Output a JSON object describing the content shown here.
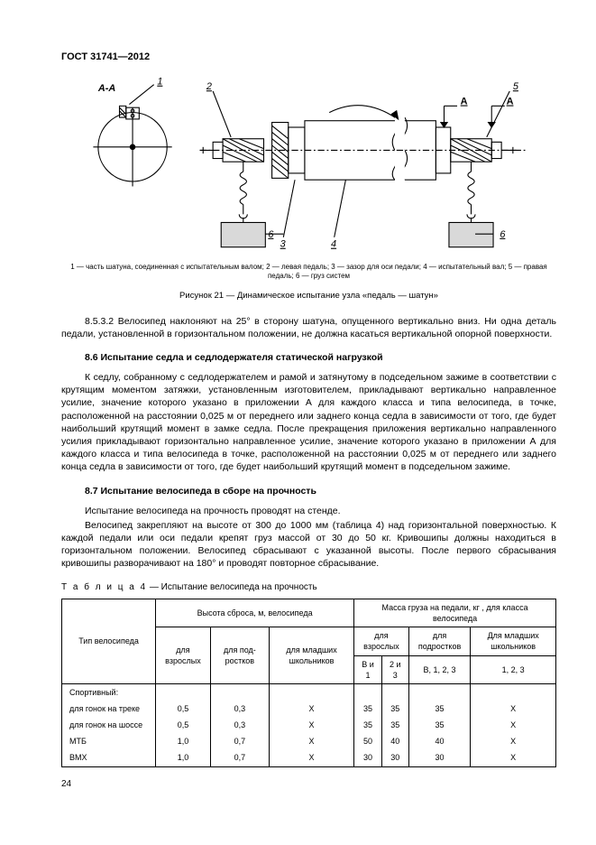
{
  "doc_id": "ГОСТ 31741—2012",
  "figure": {
    "labels": {
      "aa": "А-А",
      "n1": "1",
      "n2": "2",
      "n3": "3",
      "n4": "4",
      "n5": "5",
      "n6": "6",
      "a_left": "А",
      "a_right": "А"
    },
    "legend": "1 — часть шатуна, соединенная с испытательным валом; 2 — левая педаль; 3 — зазор для оси педали; 4 — испытательный вал; 5 — правая педаль; 6 — груз систем",
    "caption": "Рисунок 21 — Динамическое испытание узла «педаль — шатун»"
  },
  "para_8_5_3_2": "8.5.3.2 Велосипед наклоняют на 25° в сторону шатуна, опущенного вертикально вниз. Ни одна деталь педали, установленной в горизонтальном положении, не должна касаться вертикальной опорной поверхности.",
  "sec_8_6": {
    "head": "8.6  Испытание седла и седлодержателя статической нагрузкой",
    "body": "К седлу, собранному с седлодержателем и рамой и затянутому в подседельном зажиме в соответствии с крутящим моментом затяжки, установленным изготовителем, прикладывают вертикально направленное усилие, значение которого указано в приложении А для каждого класса и типа велосипеда, в точке, расположенной на расстоянии 0,025 м от переднего или заднего конца седла в зависимости от того, где будет наибольший крутящий момент в замке седла. После прекращения приложения вертикально направленного усилия прикладывают горизонтально направленное усилие, значение которого указано в приложении А для каждого класса и типа велосипеда в точке, расположенной на расстоянии 0,025 м от переднего или заднего конца седла в зависимости от того, где будет наибольший крутящий момент в подседельном зажиме."
  },
  "sec_8_7": {
    "head": "8.7  Испытание велосипеда в сборе на прочность",
    "p1": "Испытание велосипеда на прочность проводят на стенде.",
    "p2": "Велосипед закрепляют на высоте от 300 до 1000 мм (таблица 4) над горизонтальной поверхностью. К каждой педали или оси педали крепят груз массой от 30 до 50 кг. Кривошипы должны находиться в горизонтальном положении. Велосипед сбрасывают с указанной высоты. После первого сбрасывания кривошипы разворачивают на 180° и проводят повторное сбрасывание."
  },
  "table4": {
    "caption_word": "Т а б л и ц а  4",
    "caption_rest": " — Испытание велосипеда на прочность",
    "head": {
      "col_type": "Тип велосипеда",
      "drop_group": "Высота сброса, м, велосипеда",
      "mass_group": "Масса груза на педали, кг , для класса велосипеда",
      "adult": "для\nвзрослых",
      "teen": "для под-\nростков",
      "junior": "для младших\nшкольников",
      "mass_adult": "для\nвзрослых",
      "mass_teen": "для\nподростков",
      "mass_junior": "Для младших\nшкольников",
      "sub_a": "В и 1",
      "sub_b": "2 и 3",
      "sub_c": "В, 1, 2, 3",
      "sub_d": "1, 2, 3"
    },
    "rows": [
      {
        "label": "Спортивный:",
        "c": [
          "",
          "",
          "",
          "",
          "",
          "",
          ""
        ]
      },
      {
        "label": "для гонок на треке",
        "c": [
          "0,5",
          "0,3",
          "Х",
          "35",
          "35",
          "35",
          "Х"
        ]
      },
      {
        "label": "для гонок на шоссе",
        "c": [
          "0,5",
          "0,3",
          "Х",
          "35",
          "35",
          "35",
          "Х"
        ]
      },
      {
        "label": "МТБ",
        "c": [
          "1,0",
          "0,7",
          "Х",
          "50",
          "40",
          "40",
          "Х"
        ]
      },
      {
        "label": "ВМХ",
        "c": [
          "1,0",
          "0,7",
          "Х",
          "30",
          "30",
          "30",
          "Х"
        ]
      }
    ]
  },
  "pagenum": "24"
}
